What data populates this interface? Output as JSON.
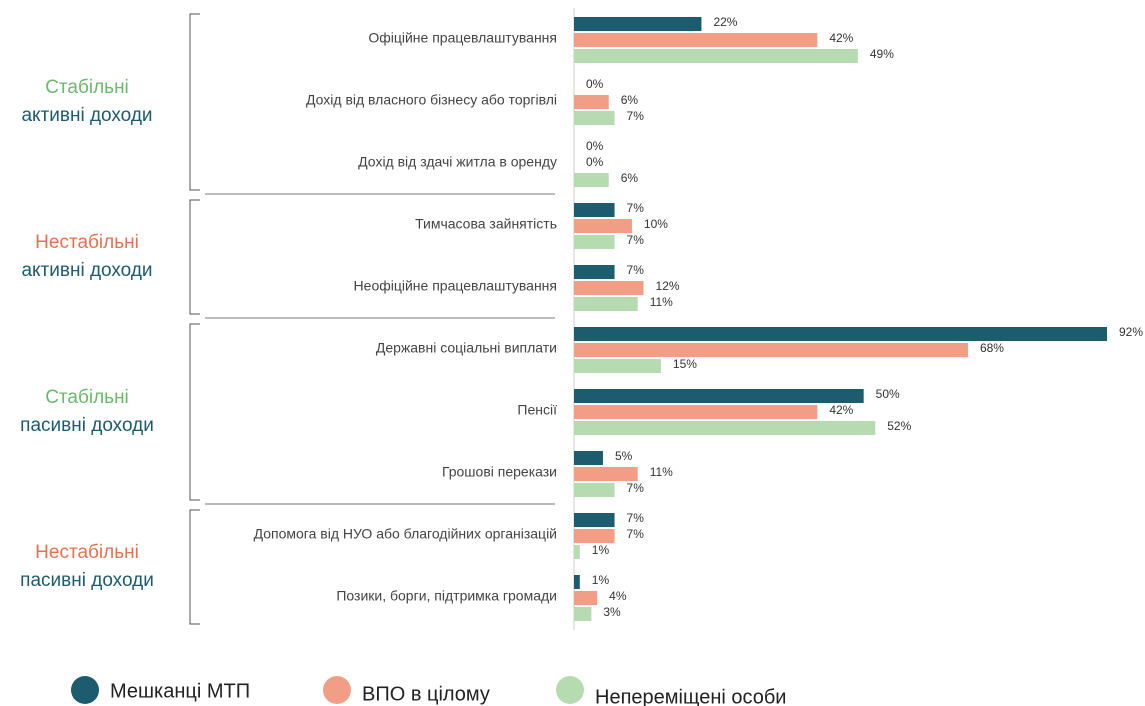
{
  "chart_data": {
    "type": "bar",
    "orientation": "horizontal",
    "groups": [
      {
        "label": [
          "Стабільні",
          "активні доходи"
        ],
        "color": "#6cb96c",
        "categories": [
          "Офіційне працевлаштування",
          "Дохід від власного бізнесу або торгівлі",
          "Дохід від здачі житла в оренду"
        ]
      },
      {
        "label": [
          "Нестабільні",
          "активні доходи"
        ],
        "color": "#e8704f",
        "categories": [
          "Тимчасова зайнятість",
          "Неофіційне працевлаштування"
        ]
      },
      {
        "label": [
          "Стабільні",
          "пасивні доходи"
        ],
        "color": "#6cb96c",
        "categories": [
          "Державні соціальні виплати",
          "Пенсії",
          "Грошові перекази"
        ]
      },
      {
        "label": [
          "Нестабільні",
          "пасивні доходи"
        ],
        "color": "#e8704f",
        "categories": [
          "Допомога від НУО або благодійних організацій",
          "Позики, борги, підтримка громади"
        ]
      }
    ],
    "series": [
      {
        "name": "Мешканці МТП",
        "color": "#1d5b6e",
        "values": [
          22,
          0,
          0,
          7,
          7,
          92,
          50,
          5,
          7,
          1
        ],
        "value_labels": [
          "22%",
          "0%",
          "0%",
          "7%",
          "7%",
          "92%",
          "50%",
          "5%",
          "7%",
          "1%"
        ]
      },
      {
        "name": "ВПО в цілому",
        "color": "#f29e87",
        "values": [
          42,
          6,
          0,
          10,
          12,
          68,
          42,
          11,
          7,
          4
        ],
        "value_labels": [
          "42%",
          "6%",
          "0%",
          "10%",
          "12%",
          "68%",
          "42%",
          "11%",
          "7%",
          "4%"
        ]
      },
      {
        "name": "Непереміщені особи",
        "color": "#b6dbb1",
        "values": [
          49,
          7,
          6,
          7,
          11,
          15,
          52,
          7,
          1,
          3
        ],
        "value_labels": [
          "49%",
          "7%",
          "6%",
          "7%",
          "11%",
          "15%",
          "52%",
          "7%",
          "1%",
          "3%"
        ]
      }
    ],
    "legend": "bottom"
  }
}
